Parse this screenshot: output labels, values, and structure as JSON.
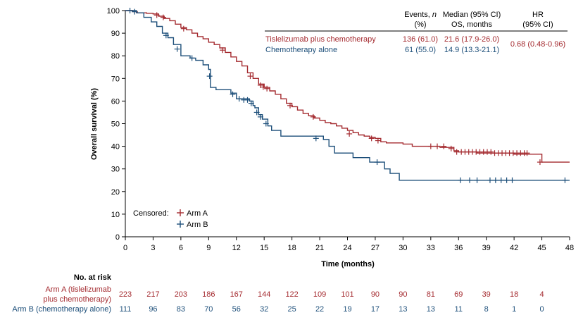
{
  "colors": {
    "arm_a": "#A42A2F",
    "arm_b": "#1D4F7A",
    "axis": "#000000"
  },
  "chart_data": {
    "type": "line",
    "subtype": "kaplan-meier",
    "xlabel": "Time (months)",
    "ylabel": "Overall survival (%)",
    "xlim": [
      0,
      48
    ],
    "ylim": [
      0,
      100
    ],
    "xticks": [
      0,
      3,
      6,
      9,
      12,
      15,
      18,
      21,
      24,
      27,
      30,
      33,
      36,
      39,
      42,
      45,
      48
    ],
    "yticks": [
      0,
      10,
      20,
      30,
      40,
      50,
      60,
      70,
      80,
      90,
      100
    ],
    "grid": false,
    "table_header": {
      "events_line1": "Events, n",
      "events_line2": "(%)",
      "median_line1": "Median (95% CI)",
      "median_line2": "OS, months",
      "hr_line1": "HR",
      "hr_line2": "(95% CI)"
    },
    "series": [
      {
        "name": "Tislelizumab plus chemotherapy",
        "color": "#A42A2F",
        "events": "136 (61.0)",
        "median": "21.6 (17.9-26.0)",
        "points": [
          [
            0,
            100
          ],
          [
            0.3,
            100
          ],
          [
            0.8,
            99.5
          ],
          [
            1.3,
            99
          ],
          [
            1.8,
            99
          ],
          [
            2.3,
            98.8
          ],
          [
            3,
            98.5
          ],
          [
            3.6,
            97.5
          ],
          [
            4.2,
            96.5
          ],
          [
            4.8,
            95.5
          ],
          [
            5.4,
            94
          ],
          [
            6,
            92.5
          ],
          [
            6.6,
            91.5
          ],
          [
            7.2,
            90
          ],
          [
            7.8,
            88.5
          ],
          [
            8.4,
            87.5
          ],
          [
            9,
            86
          ],
          [
            9.6,
            85
          ],
          [
            10.2,
            83.5
          ],
          [
            10.8,
            81.5
          ],
          [
            11.4,
            79.5
          ],
          [
            12,
            77.5
          ],
          [
            12.6,
            75.5
          ],
          [
            13.2,
            72.5
          ],
          [
            13.8,
            70
          ],
          [
            14.4,
            67.5
          ],
          [
            15,
            66
          ],
          [
            15.6,
            64.5
          ],
          [
            16.2,
            63
          ],
          [
            16.8,
            61
          ],
          [
            17.4,
            59
          ],
          [
            18,
            57.5
          ],
          [
            18.6,
            56
          ],
          [
            19.2,
            54.5
          ],
          [
            19.8,
            53.5
          ],
          [
            20.4,
            52.5
          ],
          [
            21,
            51.5
          ],
          [
            21.6,
            50.5
          ],
          [
            22.2,
            50
          ],
          [
            22.8,
            49
          ],
          [
            23.4,
            48
          ],
          [
            24,
            47
          ],
          [
            24.6,
            46
          ],
          [
            25.2,
            45
          ],
          [
            25.8,
            44.5
          ],
          [
            26.4,
            44
          ],
          [
            27,
            43.5
          ],
          [
            27.6,
            42
          ],
          [
            28.2,
            41.5
          ],
          [
            29,
            41.5
          ],
          [
            30,
            41
          ],
          [
            31,
            40
          ],
          [
            33,
            40
          ],
          [
            34,
            39.5
          ],
          [
            35.5,
            38
          ],
          [
            36,
            37.5
          ],
          [
            38,
            37
          ],
          [
            40,
            37
          ],
          [
            42,
            36.5
          ],
          [
            43.5,
            36.5
          ],
          [
            45,
            33
          ],
          [
            48,
            33
          ]
        ],
        "censored": [
          [
            3.4,
            98
          ],
          [
            4.1,
            97
          ],
          [
            6.3,
            92
          ],
          [
            10.5,
            82.5
          ],
          [
            13.5,
            71
          ],
          [
            14.6,
            67
          ],
          [
            14.9,
            66.2
          ],
          [
            15.3,
            65.5
          ],
          [
            17.8,
            58
          ],
          [
            20.3,
            53
          ],
          [
            24.2,
            45.5
          ],
          [
            26.6,
            43.5
          ],
          [
            27.3,
            42.5
          ],
          [
            33,
            40
          ],
          [
            33.7,
            40
          ],
          [
            34.4,
            40
          ],
          [
            35.2,
            39
          ],
          [
            35.8,
            37.5
          ],
          [
            36.3,
            37.5
          ],
          [
            36.7,
            37.5
          ],
          [
            37.1,
            37.5
          ],
          [
            37.5,
            37.5
          ],
          [
            37.9,
            37.5
          ],
          [
            38.3,
            37.5
          ],
          [
            38.7,
            37.5
          ],
          [
            39.1,
            37.5
          ],
          [
            39.5,
            37.5
          ],
          [
            39.9,
            37
          ],
          [
            40.3,
            37
          ],
          [
            40.7,
            37
          ],
          [
            41.1,
            37
          ],
          [
            41.5,
            37
          ],
          [
            41.9,
            37
          ],
          [
            42.3,
            37
          ],
          [
            42.7,
            37
          ],
          [
            43.1,
            37
          ],
          [
            43.4,
            37
          ],
          [
            44.8,
            33
          ]
        ]
      },
      {
        "name": "Chemotherapy alone",
        "color": "#1D4F7A",
        "events": "61 (55.0)",
        "median": "14.9 (13.3-21.1)",
        "points": [
          [
            0,
            100
          ],
          [
            0.8,
            100
          ],
          [
            1.2,
            99
          ],
          [
            2.0,
            97
          ],
          [
            2.8,
            95
          ],
          [
            3.4,
            93
          ],
          [
            4.0,
            90
          ],
          [
            4.6,
            88
          ],
          [
            5.2,
            85
          ],
          [
            6.0,
            80
          ],
          [
            7.0,
            79
          ],
          [
            7.6,
            78
          ],
          [
            8.4,
            76
          ],
          [
            9.0,
            74
          ],
          [
            9.2,
            66
          ],
          [
            9.8,
            65
          ],
          [
            11.0,
            65
          ],
          [
            11.4,
            63.5
          ],
          [
            12.0,
            61
          ],
          [
            13.4,
            60
          ],
          [
            13.8,
            58
          ],
          [
            14.0,
            57
          ],
          [
            14.4,
            54
          ],
          [
            14.8,
            52
          ],
          [
            15.4,
            49
          ],
          [
            15.8,
            47
          ],
          [
            16.2,
            47
          ],
          [
            16.8,
            44.5
          ],
          [
            20.5,
            44.5
          ],
          [
            21.4,
            43
          ],
          [
            22,
            40
          ],
          [
            22.6,
            37
          ],
          [
            24,
            37
          ],
          [
            24.6,
            35
          ],
          [
            26.4,
            35
          ],
          [
            26.4,
            33
          ],
          [
            28,
            33
          ],
          [
            28,
            30
          ],
          [
            28.6,
            28
          ],
          [
            29.6,
            28
          ],
          [
            29.6,
            25
          ],
          [
            48,
            25
          ]
        ],
        "censored": [
          [
            0.5,
            100
          ],
          [
            1.0,
            99.5
          ],
          [
            4.4,
            89
          ],
          [
            5.6,
            83
          ],
          [
            7.2,
            79
          ],
          [
            9.1,
            71
          ],
          [
            11.6,
            63
          ],
          [
            12.3,
            61
          ],
          [
            12.8,
            60.5
          ],
          [
            13.2,
            60.5
          ],
          [
            13.6,
            59
          ],
          [
            14.2,
            55
          ],
          [
            14.6,
            53
          ],
          [
            15.2,
            50
          ],
          [
            20.6,
            43.5
          ],
          [
            27.2,
            33
          ],
          [
            36.2,
            25
          ],
          [
            37.2,
            25
          ],
          [
            38.0,
            25
          ],
          [
            39.4,
            25
          ],
          [
            40.0,
            25
          ],
          [
            40.6,
            25
          ],
          [
            41.2,
            25
          ],
          [
            41.8,
            25
          ],
          [
            47.5,
            25
          ]
        ]
      }
    ],
    "hr": "0.68 (0.48-0.96)",
    "censored_legend": {
      "title": "Censored:",
      "arm_a": "Arm A",
      "arm_b": "Arm B"
    },
    "risk_table": {
      "title": "No. at risk",
      "arm_a_label_line1": "Arm A (tislelizumab",
      "arm_a_label_line2": "plus chemotherapy)",
      "arm_b_label": "Arm B (chemotherapy alone)",
      "arm_a_counts": [
        223,
        217,
        203,
        186,
        167,
        144,
        122,
        109,
        101,
        90,
        90,
        81,
        69,
        39,
        18,
        4
      ],
      "arm_b_counts": [
        111,
        96,
        83,
        70,
        56,
        32,
        25,
        22,
        19,
        17,
        13,
        13,
        11,
        8,
        1,
        0
      ]
    }
  }
}
